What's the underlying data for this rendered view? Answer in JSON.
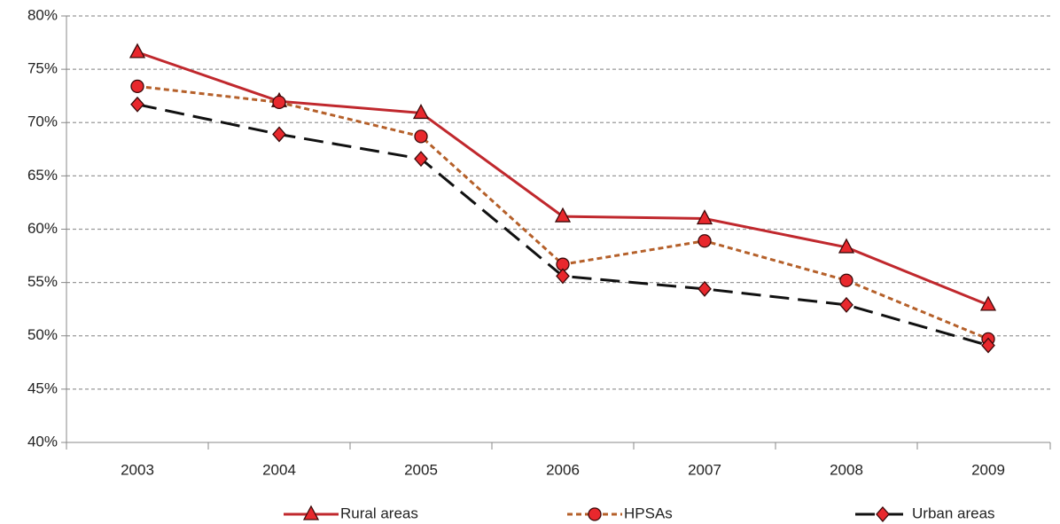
{
  "chart_data": {
    "type": "line",
    "categories": [
      "2003",
      "2004",
      "2005",
      "2006",
      "2007",
      "2008",
      "2009"
    ],
    "series": [
      {
        "name": "Rural areas",
        "color": "#c0282d",
        "dash": "solid",
        "marker": "triangle",
        "marker_color": "#e8282d",
        "values": [
          76.6,
          72.0,
          70.9,
          61.2,
          61.0,
          58.3,
          52.9
        ]
      },
      {
        "name": "HPSAs",
        "color": "#b5602a",
        "dash": "short",
        "marker": "circle",
        "marker_color": "#e8282d",
        "values": [
          73.4,
          71.9,
          68.7,
          56.7,
          58.9,
          55.2,
          49.7
        ]
      },
      {
        "name": "Urban areas",
        "color": "#111111",
        "dash": "long",
        "marker": "diamond",
        "marker_color": "#e8282d",
        "values": [
          71.7,
          68.9,
          66.6,
          55.6,
          54.4,
          52.9,
          49.1
        ]
      }
    ],
    "ylim": [
      40,
      80
    ],
    "yticks": [
      {
        "value": 40,
        "label": "40%"
      },
      {
        "value": 45,
        "label": "45%"
      },
      {
        "value": 50,
        "label": "50%"
      },
      {
        "value": 55,
        "label": "55%"
      },
      {
        "value": 60,
        "label": "60%"
      },
      {
        "value": 65,
        "label": "65%"
      },
      {
        "value": 70,
        "label": "70%"
      },
      {
        "value": 75,
        "label": "75%"
      },
      {
        "value": 80,
        "label": "80%"
      }
    ],
    "grid": true,
    "legend": "bottom"
  }
}
